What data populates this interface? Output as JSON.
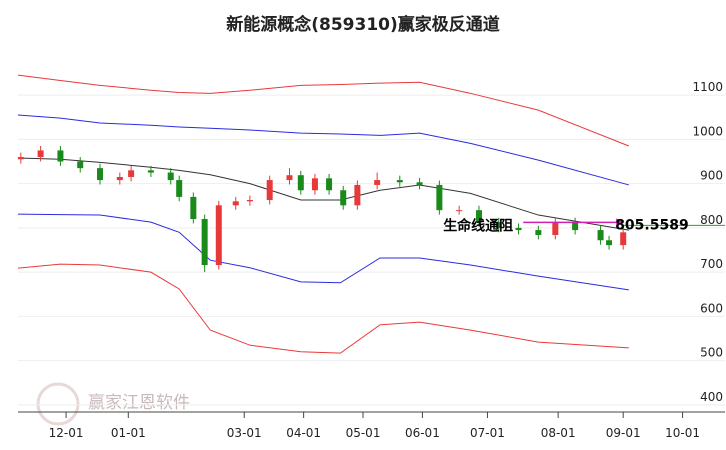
{
  "chart_data": {
    "type": "candlestick",
    "title": "新能源概念(859310)赢家极反通道",
    "watermark": "赢家江恩软件",
    "xlim": [
      0,
      250
    ],
    "xticks": [
      {
        "value": 17,
        "label": "12-01"
      },
      {
        "value": 39,
        "label": "01-01"
      },
      {
        "value": 80,
        "label": "03-01"
      },
      {
        "value": 101,
        "label": "04-01"
      },
      {
        "value": 122,
        "label": "05-01"
      },
      {
        "value": 143,
        "label": "06-01"
      },
      {
        "value": 166,
        "label": "07-01"
      },
      {
        "value": 191,
        "label": "08-01"
      },
      {
        "value": 214,
        "label": "09-01"
      },
      {
        "value": 235,
        "label": "10-01"
      }
    ],
    "ylim": [
      384,
      1229
    ],
    "yticks": [
      400,
      500,
      600,
      700,
      800,
      900,
      1000,
      1100
    ],
    "grid": true,
    "x": [
      0,
      15,
      29,
      47,
      57,
      68,
      82,
      100,
      114,
      128,
      142,
      160,
      184,
      216
    ],
    "series": [
      {
        "color": "#e8393a",
        "values": [
          1145,
          1133,
          1122,
          1111,
          1106,
          1104,
          1111,
          1122,
          1124,
          1127,
          1129,
          1104,
          1066,
          985
        ]
      },
      {
        "color": "#2b2be0",
        "values": [
          1055,
          1048,
          1037,
          1032,
          1028,
          1025,
          1021,
          1014,
          1012,
          1009,
          1014,
          991,
          953,
          897
        ]
      },
      {
        "color": "#333333",
        "values": [
          958,
          955,
          948,
          937,
          930,
          920,
          900,
          863,
          863,
          885,
          897,
          878,
          829,
          795
        ]
      },
      {
        "color": "#2b2be0",
        "values": [
          831,
          830,
          829,
          813,
          790,
          727,
          710,
          678,
          676,
          732,
          732,
          716,
          691,
          660
        ]
      },
      {
        "color": "#e8393a",
        "values": [
          709,
          718,
          716,
          700,
          662,
          569,
          535,
          520,
          517,
          581,
          587,
          569,
          542,
          529
        ]
      }
    ],
    "candles": {
      "up_color": "#e8393a",
      "down_color": "#1a8a1a",
      "x": [
        1,
        8,
        15,
        22,
        29,
        36,
        40,
        47,
        54,
        57,
        62,
        66,
        71,
        77,
        82,
        89,
        96,
        100,
        105,
        110,
        115,
        120,
        127,
        135,
        142,
        149,
        156,
        163,
        170,
        177,
        184,
        190,
        197,
        206,
        209,
        214
      ],
      "open": [
        955,
        960,
        975,
        950,
        935,
        908,
        915,
        930,
        925,
        908,
        870,
        820,
        716,
        851,
        860,
        863,
        908,
        919,
        885,
        912,
        885,
        851,
        897,
        908,
        903,
        897,
        840,
        840,
        813,
        800,
        795,
        784,
        813,
        795,
        772,
        761
      ],
      "high": [
        970,
        985,
        985,
        960,
        945,
        925,
        940,
        940,
        935,
        918,
        880,
        830,
        861,
        870,
        873,
        918,
        935,
        929,
        922,
        922,
        895,
        907,
        925,
        918,
        913,
        907,
        850,
        850,
        823,
        810,
        805,
        823,
        823,
        805,
        782,
        800
      ],
      "low": [
        945,
        950,
        940,
        925,
        898,
        898,
        905,
        915,
        898,
        860,
        810,
        700,
        706,
        841,
        850,
        853,
        898,
        875,
        875,
        875,
        841,
        841,
        887,
        893,
        887,
        830,
        830,
        803,
        790,
        785,
        774,
        774,
        785,
        762,
        751,
        751
      ],
      "close": [
        960,
        975,
        950,
        935,
        908,
        915,
        930,
        925,
        908,
        870,
        820,
        716,
        851,
        860,
        863,
        908,
        919,
        885,
        912,
        885,
        851,
        897,
        908,
        903,
        897,
        840,
        840,
        813,
        800,
        795,
        784,
        813,
        795,
        772,
        761,
        790
      ]
    },
    "annotation": {
      "label": "生命线通阻",
      "value": 805.5589,
      "color": "#d01fb0",
      "line_color": "#2aa52a"
    }
  }
}
